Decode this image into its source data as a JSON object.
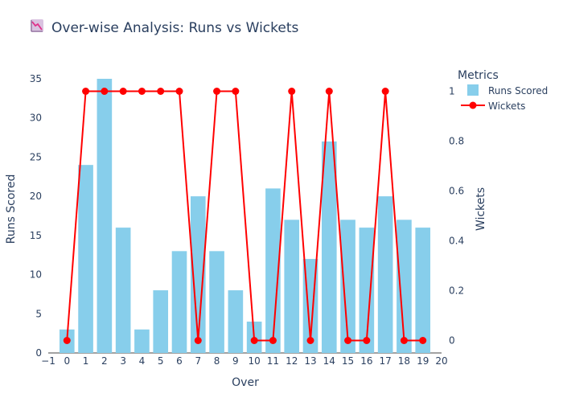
{
  "chart_data": {
    "type": "bar+line",
    "title": "Over-wise Analysis: Runs vs Wickets",
    "title_icon": "chart-decreasing-icon",
    "x": [
      0,
      1,
      2,
      3,
      4,
      5,
      6,
      7,
      8,
      9,
      10,
      11,
      12,
      13,
      14,
      15,
      16,
      17,
      18,
      19
    ],
    "xlabel": "Over",
    "xlim": [
      -1,
      20
    ],
    "xticks": [
      "−1",
      "0",
      "1",
      "2",
      "3",
      "4",
      "5",
      "6",
      "7",
      "8",
      "9",
      "10",
      "11",
      "12",
      "13",
      "14",
      "15",
      "16",
      "17",
      "18",
      "19",
      "20"
    ],
    "ylabel": "Runs Scored",
    "ylim": [
      0,
      35
    ],
    "yticks": [
      "0",
      "5",
      "10",
      "15",
      "20",
      "25",
      "30",
      "35"
    ],
    "y2label": "Wickets",
    "y2lim": [
      -0.05,
      1.05
    ],
    "y2ticks": [
      "0",
      "0.2",
      "0.4",
      "0.6",
      "0.8",
      "1"
    ],
    "legend": {
      "title": "Metrics",
      "placement": "top-right"
    },
    "series": [
      {
        "name": "Runs Scored",
        "type": "bar",
        "axis": "left",
        "color": "#87CEEB",
        "values": [
          3,
          24,
          35,
          16,
          3,
          8,
          13,
          20,
          13,
          8,
          4,
          21,
          17,
          12,
          27,
          17,
          16,
          20,
          17,
          16
        ]
      },
      {
        "name": "Wickets",
        "type": "line",
        "axis": "right",
        "color": "#FF0000",
        "values": [
          0,
          1,
          1,
          1,
          1,
          1,
          1,
          0,
          1,
          1,
          0,
          0,
          1,
          0,
          1,
          0,
          0,
          1,
          0,
          0
        ]
      }
    ]
  }
}
